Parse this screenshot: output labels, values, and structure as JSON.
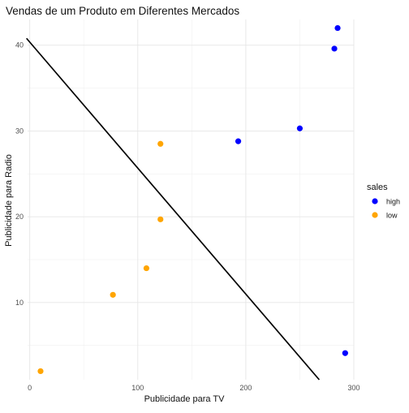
{
  "chart_data": {
    "type": "scatter",
    "title": "Vendas de um Produto em Diferentes Mercados",
    "xlabel": "Publicidade para TV",
    "ylabel": "Publicidade para Radio",
    "xlim": [
      -2,
      300
    ],
    "ylim": [
      1,
      43
    ],
    "x_ticks": [
      0,
      100,
      200,
      300
    ],
    "y_ticks": [
      10,
      20,
      30,
      40
    ],
    "x_tick_labels": [
      "0",
      "100",
      "200",
      "300"
    ],
    "y_tick_labels": [
      "10",
      "20",
      "30",
      "40"
    ],
    "grid": true,
    "legend": {
      "title": "sales",
      "placement": "right"
    },
    "series": [
      {
        "name": "high",
        "color": "#0000FF",
        "points": [
          {
            "x": 285,
            "y": 42.0
          },
          {
            "x": 282,
            "y": 39.6
          },
          {
            "x": 250,
            "y": 30.3
          },
          {
            "x": 193,
            "y": 28.8
          },
          {
            "x": 292,
            "y": 4.1
          }
        ]
      },
      {
        "name": "low",
        "color": "#FFA500",
        "points": [
          {
            "x": 10,
            "y": 2.0
          },
          {
            "x": 77,
            "y": 10.9
          },
          {
            "x": 108,
            "y": 14.0
          },
          {
            "x": 121,
            "y": 19.7
          },
          {
            "x": 121,
            "y": 28.5
          }
        ]
      }
    ],
    "line": {
      "color": "#000000",
      "points": [
        {
          "x": -3,
          "y": 40.8
        },
        {
          "x": 268,
          "y": 1.0
        }
      ]
    }
  }
}
